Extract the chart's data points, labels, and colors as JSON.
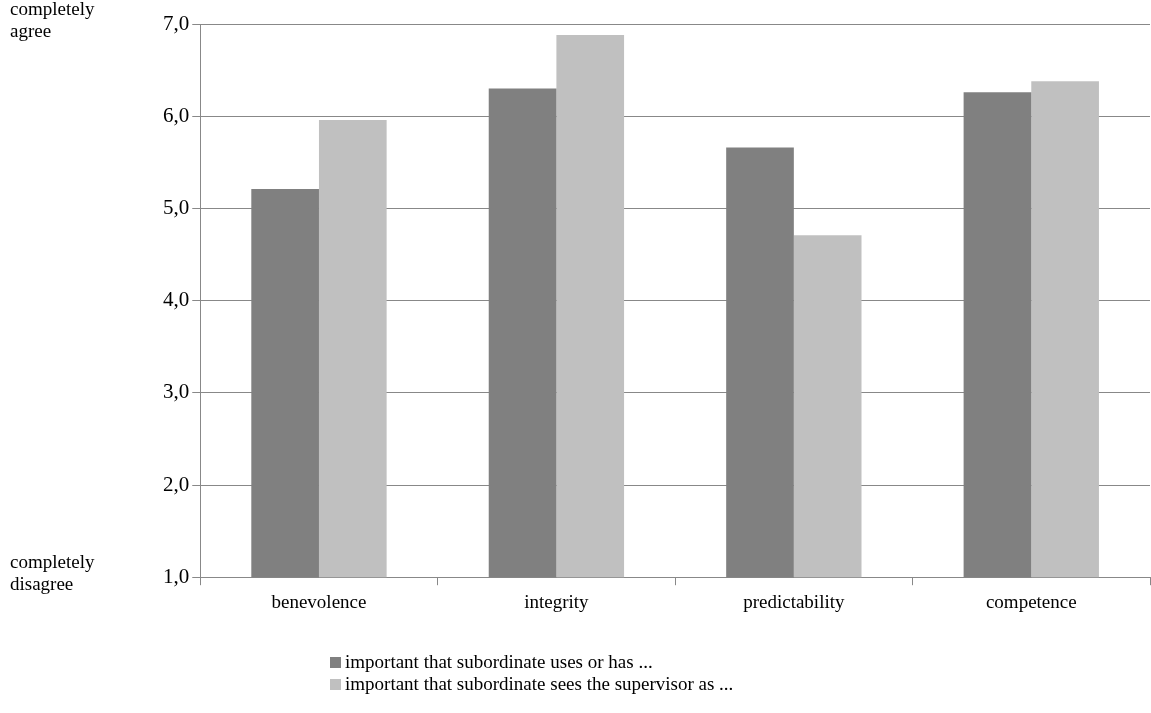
{
  "chart_data": {
    "type": "bar",
    "categories": [
      "benevolence",
      "integrity",
      "predictability",
      "competence"
    ],
    "series": [
      {
        "name": "important that subordinate uses or has ...",
        "color": "#808080",
        "values": [
          5.21,
          6.3,
          5.66,
          6.26
        ]
      },
      {
        "name": "important that subordinate sees the supervisor as ...",
        "color": "#c0c0c0",
        "values": [
          5.96,
          6.88,
          4.71,
          6.38
        ]
      }
    ],
    "ylim": [
      1,
      7
    ],
    "yticks": [
      {
        "value": 1,
        "label": "1,0"
      },
      {
        "value": 2,
        "label": "2,0"
      },
      {
        "value": 3,
        "label": "3,0"
      },
      {
        "value": 4,
        "label": "4,0"
      },
      {
        "value": 5,
        "label": "5,0"
      },
      {
        "value": 6,
        "label": "6,0"
      },
      {
        "value": 7,
        "label": "7,0"
      }
    ],
    "grid": "y",
    "legend": "bottom",
    "annotations": [
      "completely agree",
      "completely disagree"
    ]
  }
}
